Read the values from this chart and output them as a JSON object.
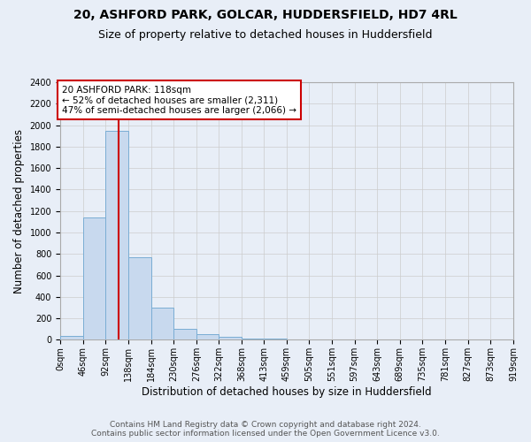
{
  "title": "20, ASHFORD PARK, GOLCAR, HUDDERSFIELD, HD7 4RL",
  "subtitle": "Size of property relative to detached houses in Huddersfield",
  "xlabel": "Distribution of detached houses by size in Huddersfield",
  "ylabel": "Number of detached properties",
  "bin_edges": [
    0,
    46,
    92,
    138,
    184,
    230,
    276,
    322,
    368,
    413,
    459,
    505,
    551,
    597,
    643,
    689,
    735,
    781,
    827,
    873,
    919
  ],
  "bar_heights": [
    35,
    1140,
    1950,
    770,
    300,
    105,
    50,
    30,
    15,
    8,
    5,
    3,
    2,
    2,
    1,
    1,
    1,
    1,
    0,
    0
  ],
  "bar_color": "#c8d9ee",
  "bar_edge_color": "#7aadd4",
  "bar_alpha": 1.0,
  "vline_x": 118,
  "vline_color": "#cc0000",
  "ylim": [
    0,
    2400
  ],
  "xlim": [
    0,
    919
  ],
  "yticks": [
    0,
    200,
    400,
    600,
    800,
    1000,
    1200,
    1400,
    1600,
    1800,
    2000,
    2200,
    2400
  ],
  "xtick_labels": [
    "0sqm",
    "46sqm",
    "92sqm",
    "138sqm",
    "184sqm",
    "230sqm",
    "276sqm",
    "322sqm",
    "368sqm",
    "413sqm",
    "459sqm",
    "505sqm",
    "551sqm",
    "597sqm",
    "643sqm",
    "689sqm",
    "735sqm",
    "781sqm",
    "827sqm",
    "873sqm",
    "919sqm"
  ],
  "annotation_text": "20 ASHFORD PARK: 118sqm\n← 52% of detached houses are smaller (2,311)\n47% of semi-detached houses are larger (2,066) →",
  "annotation_box_color": "#ffffff",
  "annotation_box_edge_color": "#cc0000",
  "grid_color": "#cccccc",
  "background_color": "#e8eef7",
  "footer_line1": "Contains HM Land Registry data © Crown copyright and database right 2024.",
  "footer_line2": "Contains public sector information licensed under the Open Government Licence v3.0.",
  "title_fontsize": 10,
  "subtitle_fontsize": 9,
  "ylabel_fontsize": 8.5,
  "xlabel_fontsize": 8.5,
  "tick_fontsize": 7,
  "annotation_fontsize": 7.5,
  "footer_fontsize": 6.5
}
